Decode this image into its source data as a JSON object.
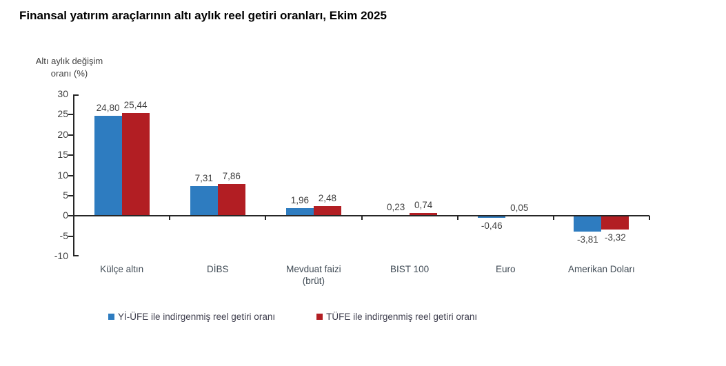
{
  "chart_data": {
    "type": "bar",
    "title": "Finansal yatırım araçlarının altı aylık reel getiri oranları, Ekim 2025",
    "ylabel_lines": [
      "Altı aylık değişim",
      "oranı (%)"
    ],
    "categories": [
      "Külçe altın",
      "DİBS",
      "Mevduat faizi\n(brüt)",
      "BIST 100",
      "Euro",
      "Amerikan Doları"
    ],
    "series": [
      {
        "name": "Yİ-ÜFE ile indirgenmiş reel getiri oranı",
        "color": "#2E7CC0",
        "values": [
          24.8,
          7.31,
          1.96,
          0.23,
          -0.46,
          -3.81
        ]
      },
      {
        "name": "TÜFE ile indirgenmiş reel getiri oranı",
        "color": "#B21E23",
        "values": [
          25.44,
          7.86,
          2.48,
          0.74,
          0.05,
          -3.32
        ]
      }
    ],
    "value_labels": [
      [
        "24,80",
        "7,31",
        "1,96",
        "0,23",
        "-0,46",
        "-3,81"
      ],
      [
        "25,44",
        "7,86",
        "2,48",
        "0,74",
        "0,05",
        "-3,32"
      ]
    ],
    "ylim": [
      -10,
      30
    ],
    "yticks": [
      30,
      25,
      20,
      15,
      10,
      5,
      0,
      -5,
      -10
    ],
    "ytick_step": 5,
    "grid": false,
    "legend_position": "bottom",
    "colors": {
      "series1": "#2E7CC0",
      "series2": "#B21E23",
      "axis": "#262626",
      "text": "#3f3f3f"
    }
  }
}
